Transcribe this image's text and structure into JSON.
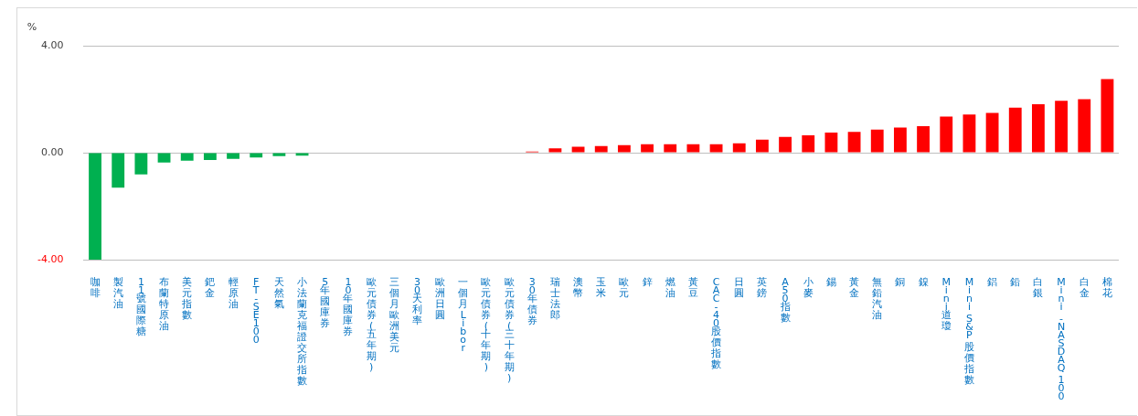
{
  "chart_data": {
    "type": "bar",
    "ylabel": "%",
    "categories": [
      "咖啡",
      "製汽油",
      "11號國際糖",
      "布蘭特原油",
      "美元指數",
      "鈀金",
      "輕原油",
      "FT-SE100",
      "天然氣",
      "小法蘭克福證交所指數",
      "5年國庫券",
      "10年國庫券",
      "歐元債券(五年期)",
      "三個月歐洲美元",
      "30天利率",
      "歐洲日圓",
      "一個月Libor",
      "歐元債券(十年期)",
      "歐元債券(三十年期)",
      "30年債券",
      "瑞士法郎",
      "澳幣",
      "玉米",
      "歐元",
      "鋅",
      "燃油",
      "黃豆",
      "CAC-40股價指數",
      "日圓",
      "英鎊",
      "A50指數",
      "小麥",
      "錫",
      "黃金",
      "無鉛汽油",
      "銅",
      "鎳",
      "Mini道瓊",
      "Mini S&P 股價指數",
      "鋁",
      "鉛",
      "白銀",
      "Mini -NASDAQ 100",
      "白金",
      "棉花"
    ],
    "values": [
      -4.0,
      -1.31,
      -0.81,
      -0.37,
      -0.3,
      -0.27,
      -0.23,
      -0.18,
      -0.13,
      -0.11,
      0,
      0,
      0,
      0,
      0,
      0,
      0,
      0,
      0,
      0.04,
      0.16,
      0.22,
      0.25,
      0.28,
      0.32,
      0.32,
      0.32,
      0.32,
      0.35,
      0.49,
      0.59,
      0.65,
      0.75,
      0.78,
      0.86,
      0.94,
      0.99,
      1.35,
      1.43,
      1.49,
      1.68,
      1.81,
      1.94,
      2.0,
      2.75
    ],
    "colors": [
      "#00b050",
      "#00b050",
      "#00b050",
      "#00b050",
      "#00b050",
      "#00b050",
      "#00b050",
      "#00b050",
      "#00b050",
      "#00b050",
      "#00b050",
      "#00b050",
      "#00b050",
      "#00b050",
      "#00b050",
      "#00b050",
      "#00b050",
      "#00b050",
      "#00b050",
      "#ff0000",
      "#ff0000",
      "#ff0000",
      "#ff0000",
      "#ff0000",
      "#ff0000",
      "#ff0000",
      "#ff0000",
      "#ff0000",
      "#ff0000",
      "#ff0000",
      "#ff0000",
      "#ff0000",
      "#ff0000",
      "#ff0000",
      "#ff0000",
      "#ff0000",
      "#ff0000",
      "#ff0000",
      "#ff0000",
      "#ff0000",
      "#ff0000",
      "#ff0000",
      "#ff0000",
      "#ff0000",
      "#ff0000"
    ],
    "ylim": [
      -4,
      4
    ],
    "yticks": [
      {
        "value": -4,
        "label": "-4.00"
      },
      {
        "value": 0,
        "label": "0.00"
      },
      {
        "value": 4,
        "label": "4.00"
      }
    ],
    "grid": "y",
    "legend": false
  }
}
